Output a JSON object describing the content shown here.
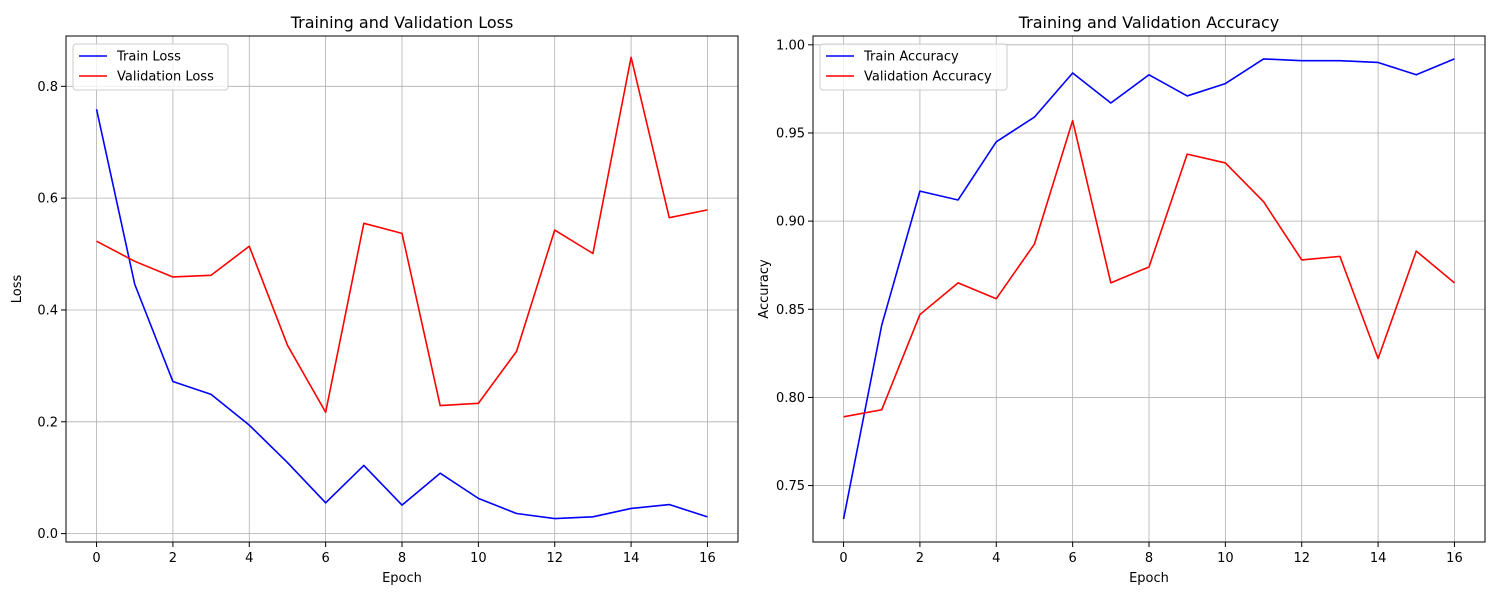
{
  "chart_data": [
    {
      "type": "line",
      "title": "Training and Validation Loss",
      "xlabel": "Epoch",
      "ylabel": "Loss",
      "xlim": [
        -0.8,
        16.8
      ],
      "ylim": [
        -0.015,
        0.89
      ],
      "xticks": [
        0,
        2,
        4,
        6,
        8,
        10,
        12,
        14,
        16
      ],
      "xtick_labels": [
        "0",
        "2",
        "4",
        "6",
        "8",
        "10",
        "12",
        "14",
        "16"
      ],
      "yticks": [
        0.0,
        0.2,
        0.4,
        0.6,
        0.8
      ],
      "ytick_labels": [
        "0.0",
        "0.2",
        "0.4",
        "0.6",
        "0.8"
      ],
      "grid": true,
      "legend_position": "top-left",
      "x": [
        0,
        1,
        2,
        3,
        4,
        5,
        6,
        7,
        8,
        9,
        10,
        11,
        12,
        13,
        14,
        15,
        16
      ],
      "series": [
        {
          "name": "Train Loss",
          "color": "#0000ff",
          "values": [
            0.759,
            0.446,
            0.272,
            0.249,
            0.194,
            0.127,
            0.055,
            0.122,
            0.051,
            0.108,
            0.063,
            0.036,
            0.027,
            0.03,
            0.045,
            0.052,
            0.03
          ]
        },
        {
          "name": "Validation Loss",
          "color": "#ff0000",
          "values": [
            0.523,
            0.487,
            0.459,
            0.462,
            0.514,
            0.337,
            0.217,
            0.555,
            0.537,
            0.229,
            0.233,
            0.326,
            0.543,
            0.501,
            0.852,
            0.565,
            0.579
          ]
        }
      ]
    },
    {
      "type": "line",
      "title": "Training and Validation Accuracy",
      "xlabel": "Epoch",
      "ylabel": "Accuracy",
      "xlim": [
        -0.8,
        16.8
      ],
      "ylim": [
        0.718,
        1.005
      ],
      "xticks": [
        0,
        2,
        4,
        6,
        8,
        10,
        12,
        14,
        16
      ],
      "xtick_labels": [
        "0",
        "2",
        "4",
        "6",
        "8",
        "10",
        "12",
        "14",
        "16"
      ],
      "yticks": [
        0.75,
        0.8,
        0.85,
        0.9,
        0.95,
        1.0
      ],
      "ytick_labels": [
        "0.75",
        "0.80",
        "0.85",
        "0.90",
        "0.95",
        "1.00"
      ],
      "grid": true,
      "legend_position": "top-left",
      "x": [
        0,
        1,
        2,
        3,
        4,
        5,
        6,
        7,
        8,
        9,
        10,
        11,
        12,
        13,
        14,
        15,
        16
      ],
      "series": [
        {
          "name": "Train Accuracy",
          "color": "#0000ff",
          "values": [
            0.731,
            0.841,
            0.917,
            0.912,
            0.945,
            0.959,
            0.984,
            0.967,
            0.983,
            0.971,
            0.978,
            0.992,
            0.991,
            0.991,
            0.99,
            0.983,
            0.992
          ]
        },
        {
          "name": "Validation Accuracy",
          "color": "#ff0000",
          "values": [
            0.789,
            0.793,
            0.847,
            0.865,
            0.856,
            0.887,
            0.957,
            0.865,
            0.874,
            0.938,
            0.933,
            0.911,
            0.878,
            0.88,
            0.822,
            0.883,
            0.865
          ]
        }
      ]
    }
  ]
}
